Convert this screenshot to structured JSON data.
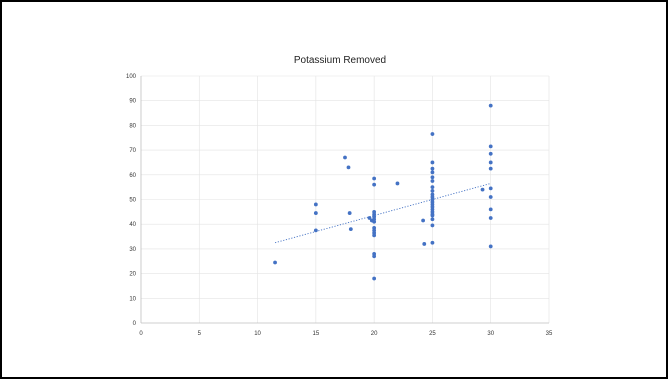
{
  "chart_data": {
    "type": "scatter",
    "title": "Potassium Removed",
    "xlabel": "",
    "ylabel": "",
    "xlim": [
      0,
      35
    ],
    "ylim": [
      0,
      100
    ],
    "xticks": [
      0,
      5,
      10,
      15,
      20,
      25,
      30,
      35
    ],
    "yticks": [
      0,
      10,
      20,
      30,
      40,
      50,
      60,
      70,
      80,
      90,
      100
    ],
    "grid": true,
    "legend": "none",
    "point_color": "#4472c4",
    "trendline": {
      "type": "linear",
      "x": [
        11.5,
        30
      ],
      "y": [
        32.5,
        56.5
      ],
      "style": "dotted",
      "color": "#4472c4"
    },
    "points": [
      [
        11.5,
        24.5
      ],
      [
        15,
        48
      ],
      [
        15,
        44.5
      ],
      [
        15,
        37.5
      ],
      [
        17.5,
        67
      ],
      [
        17.8,
        63
      ],
      [
        17.9,
        44.5
      ],
      [
        18,
        38
      ],
      [
        19.6,
        42.5
      ],
      [
        19.8,
        41.5
      ],
      [
        20,
        58.5
      ],
      [
        20,
        56
      ],
      [
        20,
        45
      ],
      [
        20,
        44
      ],
      [
        20,
        43
      ],
      [
        20,
        42
      ],
      [
        20,
        41
      ],
      [
        20,
        38.5
      ],
      [
        20,
        37.5
      ],
      [
        20,
        36.5
      ],
      [
        20,
        35.5
      ],
      [
        20,
        28
      ],
      [
        20,
        27
      ],
      [
        20,
        18
      ],
      [
        22,
        56.5
      ],
      [
        24.2,
        41.5
      ],
      [
        24.3,
        32
      ],
      [
        25,
        76.5
      ],
      [
        25,
        65
      ],
      [
        25,
        62.5
      ],
      [
        25,
        61
      ],
      [
        25,
        59
      ],
      [
        25,
        57.5
      ],
      [
        25,
        55
      ],
      [
        25,
        53.5
      ],
      [
        25,
        52
      ],
      [
        25,
        51
      ],
      [
        25,
        50
      ],
      [
        25,
        49
      ],
      [
        25,
        48
      ],
      [
        25,
        47
      ],
      [
        25,
        46
      ],
      [
        25,
        45
      ],
      [
        25,
        44
      ],
      [
        25,
        43.5
      ],
      [
        25,
        42
      ],
      [
        25,
        39.5
      ],
      [
        25,
        32.5
      ],
      [
        29.3,
        54
      ],
      [
        30,
        88
      ],
      [
        30,
        71.5
      ],
      [
        30,
        68.5
      ],
      [
        30,
        65
      ],
      [
        30,
        62.5
      ],
      [
        30,
        54.5
      ],
      [
        30,
        51
      ],
      [
        30,
        46
      ],
      [
        30,
        42.5
      ],
      [
        30,
        31
      ]
    ]
  }
}
